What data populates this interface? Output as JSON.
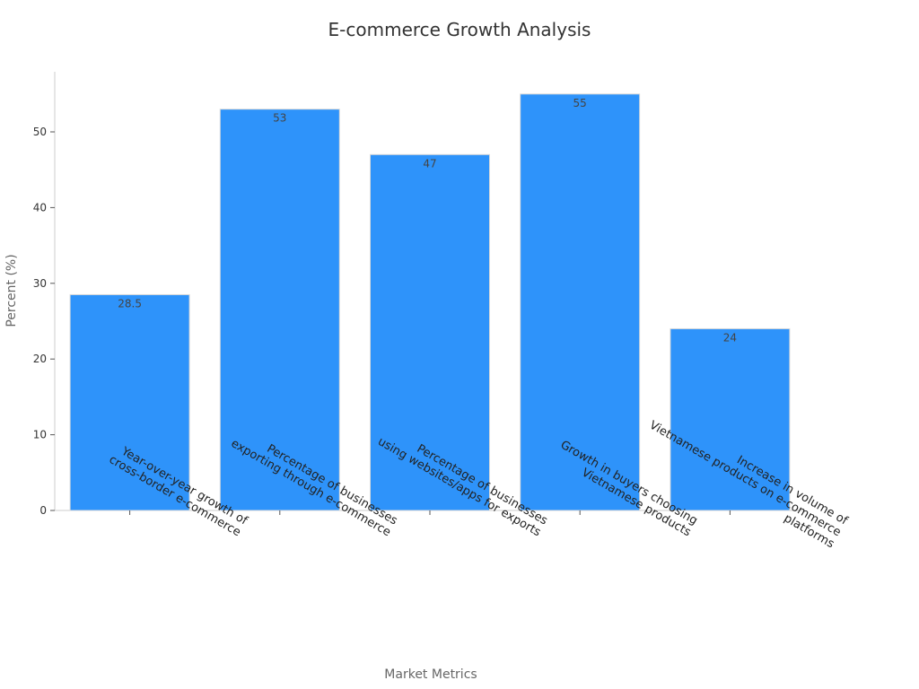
{
  "colors": {
    "bar": "#2e93fa"
  },
  "chart_data": {
    "type": "bar",
    "title": "E-commerce Growth Analysis",
    "xlabel": "Market Metrics",
    "ylabel": "Percent (%)",
    "ylim": [
      0,
      58
    ],
    "yticks": [
      0,
      10,
      20,
      30,
      40,
      50
    ],
    "grid": false,
    "categories": [
      [
        "Year-over-year growth of",
        "cross-border e-commerce"
      ],
      [
        "Percentage of businesses",
        "exporting through e-commerce"
      ],
      [
        "Percentage of businesses",
        "using websites/apps for exports"
      ],
      [
        "Growth in buyers choosing",
        "Vietnamese products"
      ],
      [
        "Increase in volume of",
        "Vietnamese products on e-commerce",
        "platforms"
      ]
    ],
    "values": [
      28.5,
      53,
      47,
      55,
      24
    ],
    "data_labels": [
      "28.5",
      "53",
      "47",
      "55",
      "24"
    ]
  }
}
